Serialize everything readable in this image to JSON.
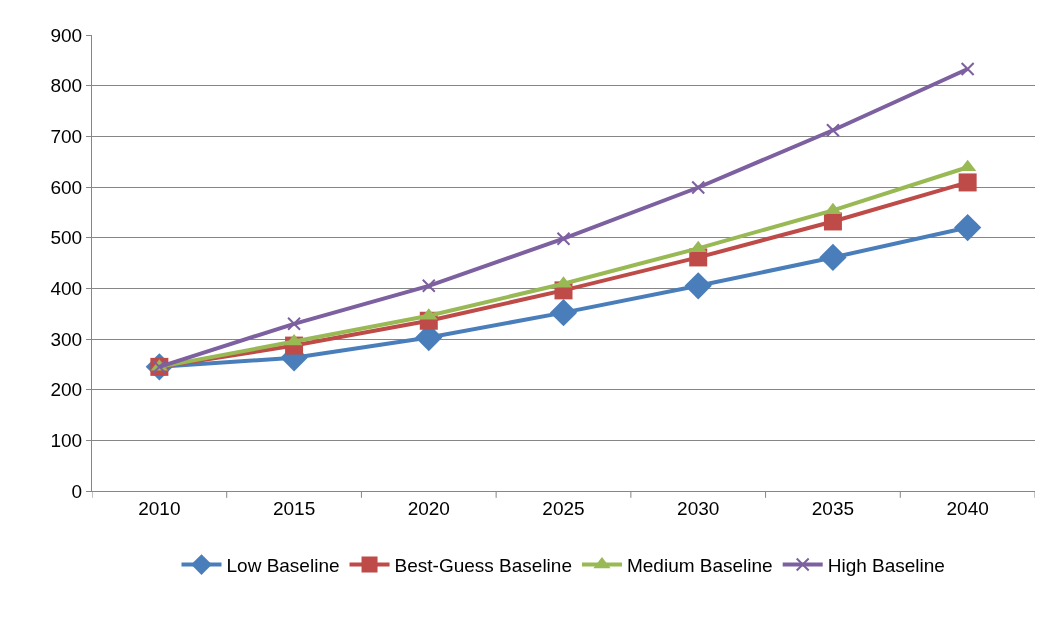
{
  "chart_data": {
    "type": "line",
    "categories": [
      "2010",
      "2015",
      "2020",
      "2025",
      "2030",
      "2035",
      "2040"
    ],
    "series": [
      {
        "name": "Low Baseline",
        "color": "#4a7ebb",
        "marker": "diamond",
        "values": [
          245,
          263,
          303,
          352,
          405,
          461,
          520
        ]
      },
      {
        "name": "Best-Guess Baseline",
        "color": "#be4b48",
        "marker": "square",
        "values": [
          245,
          287,
          336,
          396,
          461,
          532,
          609
        ]
      },
      {
        "name": "Medium Baseline",
        "color": "#98b954",
        "marker": "triangle",
        "values": [
          245,
          295,
          346,
          409,
          479,
          554,
          639
        ]
      },
      {
        "name": "High Baseline",
        "color": "#7d60a0",
        "marker": "cross",
        "values": [
          245,
          330,
          405,
          498,
          599,
          712,
          833
        ]
      }
    ],
    "ylim": [
      0,
      900
    ],
    "yticks": [
      0,
      100,
      200,
      300,
      400,
      500,
      600,
      700,
      800,
      900
    ],
    "grid": "y",
    "legend": "bottom",
    "line_style": "solid"
  }
}
